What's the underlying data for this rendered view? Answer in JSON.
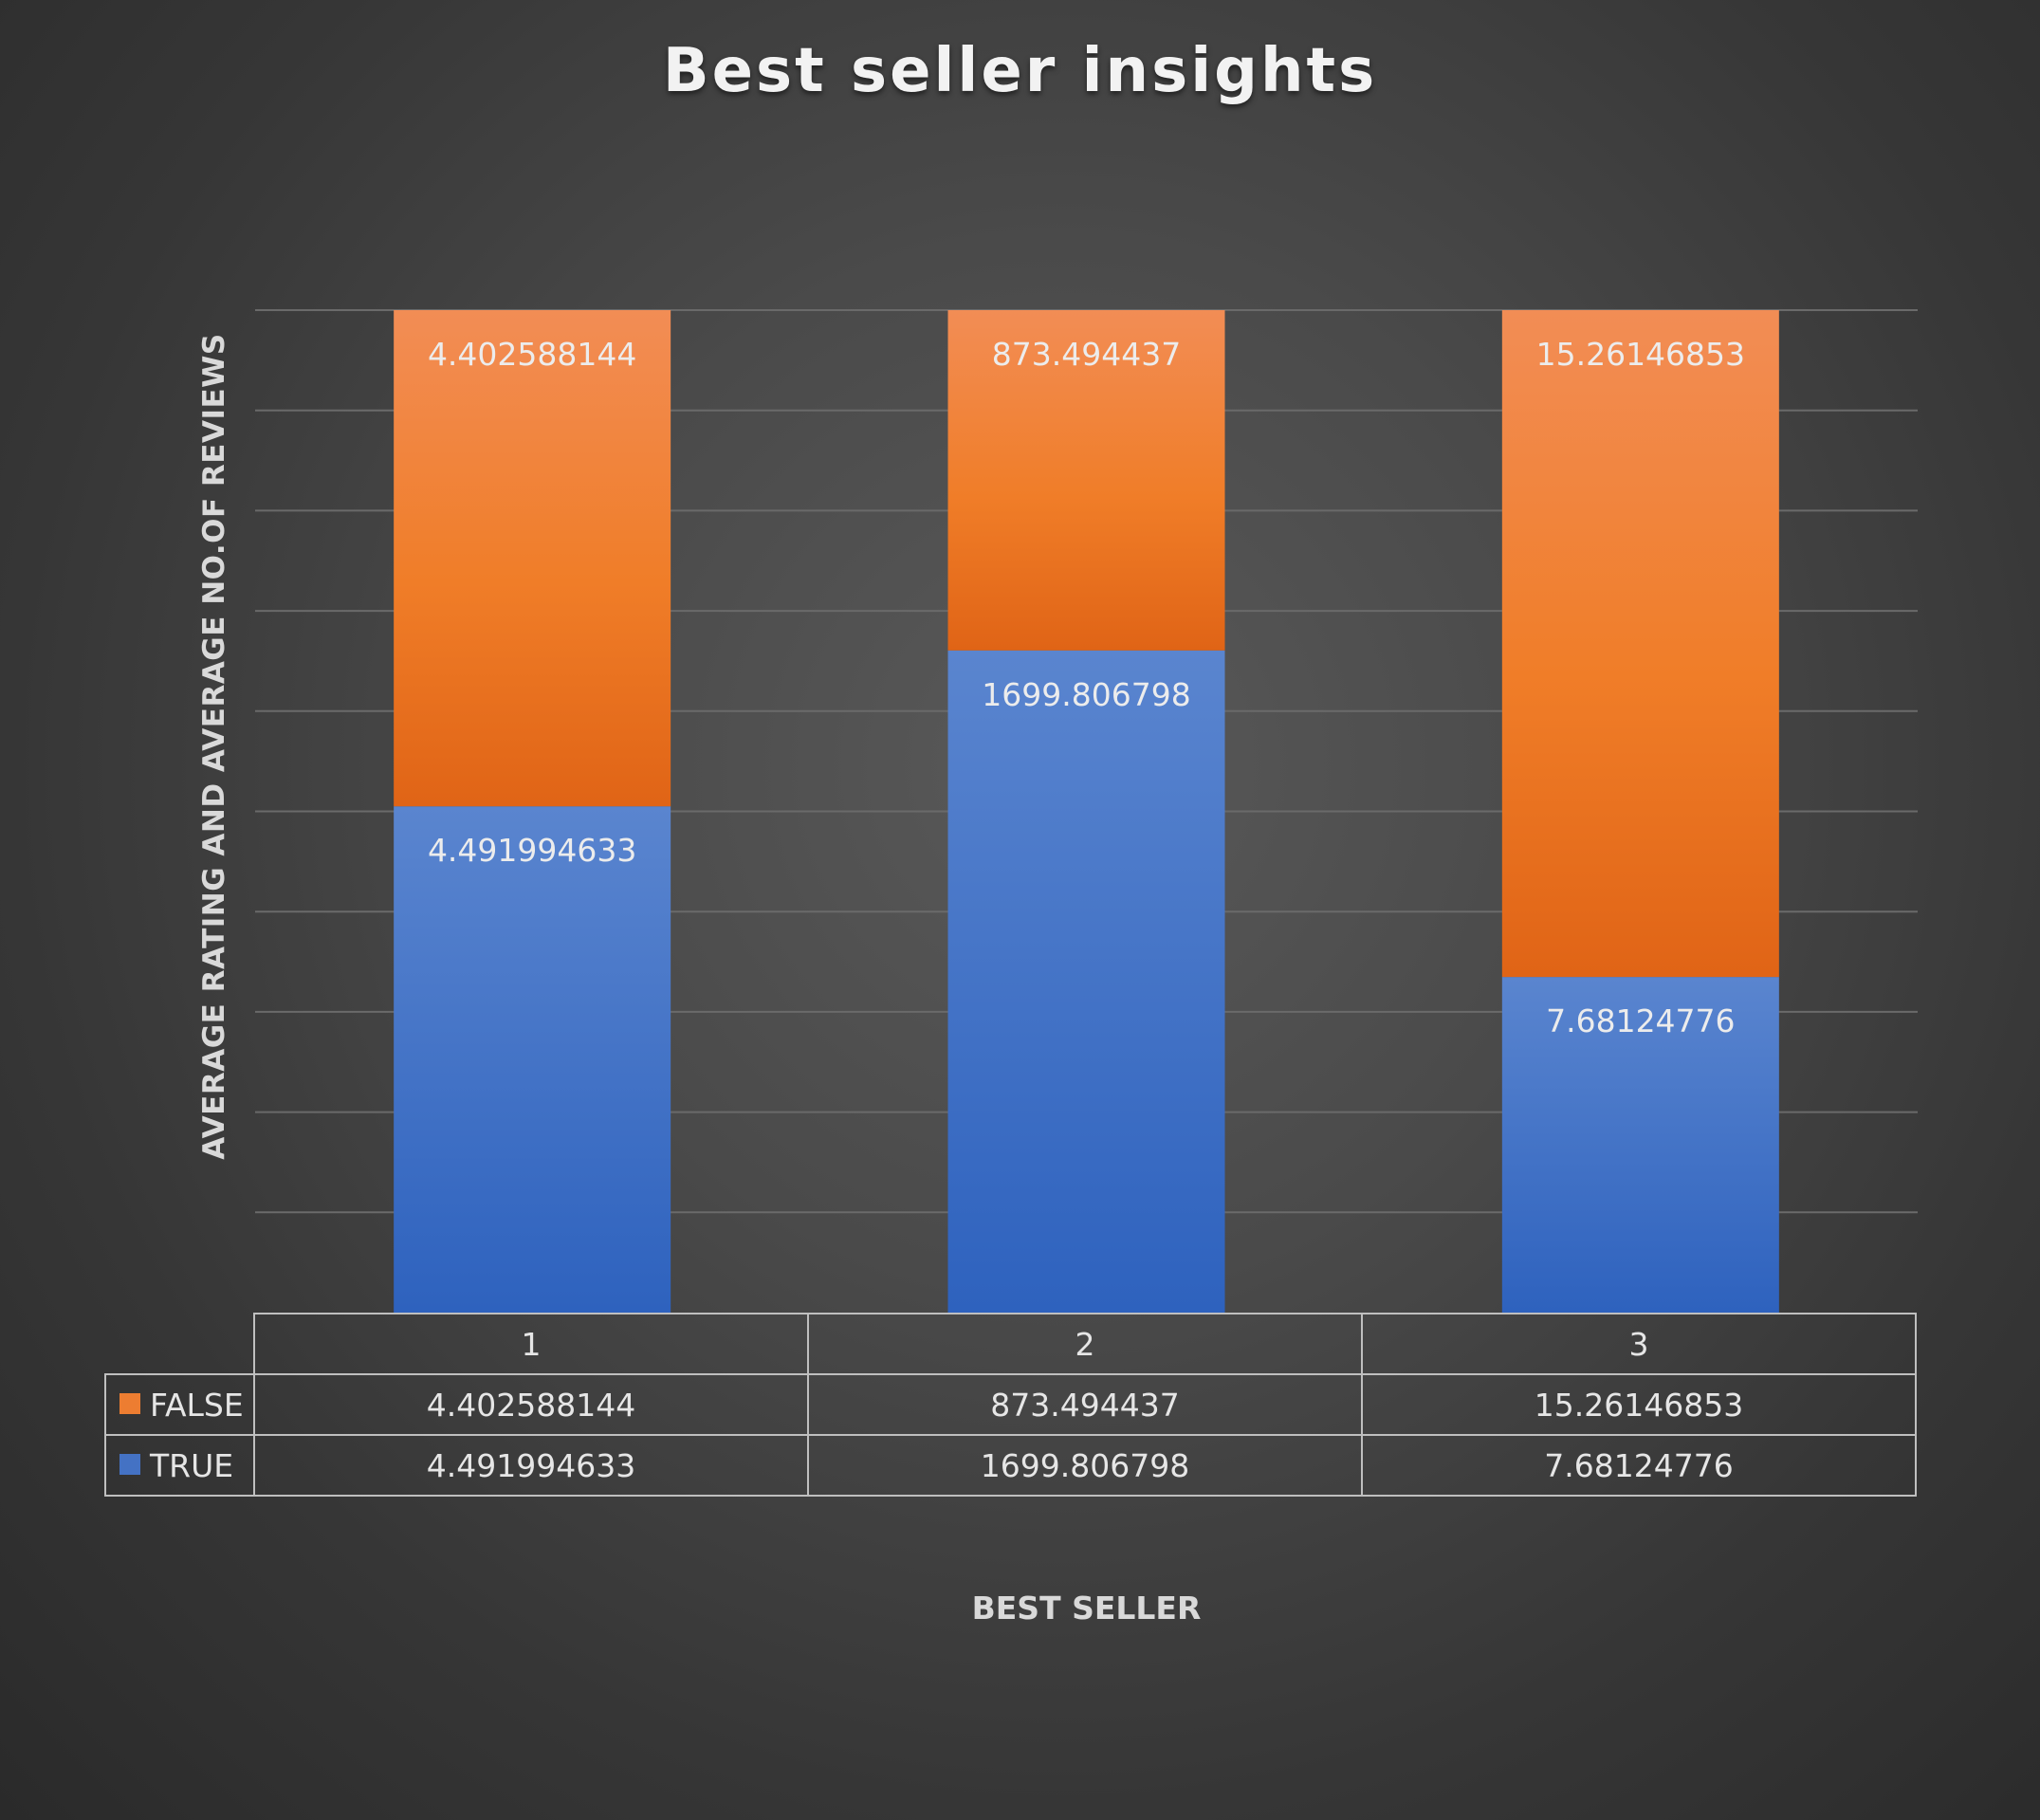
{
  "chart_data": {
    "type": "bar",
    "stacked": true,
    "title": "Best seller insights",
    "xlabel": "BEST SELLER",
    "ylabel": "AVERAGE RATING AND AVERAGE NO.OF REVIEWS",
    "normalized_100_percent": true,
    "categories": [
      "1",
      "2",
      "3"
    ],
    "series": [
      {
        "name": "TRUE",
        "color": "#4472c4",
        "values": [
          4.491994633,
          1699.806798,
          7.68124776
        ],
        "labels": [
          "4.491994633",
          "1699.806798",
          "7.68124776"
        ]
      },
      {
        "name": "FALSE",
        "color": "#ed7d31",
        "values": [
          4.402588144,
          873.494437,
          15.26146853
        ],
        "labels": [
          "4.402588144",
          "873.494437",
          "15.26146853"
        ]
      }
    ],
    "grid": true,
    "legend_position": "data table (left)",
    "data_table": {
      "header": [
        "1",
        "2",
        "3"
      ],
      "rows": [
        {
          "series": "FALSE",
          "cells": [
            "4.402588144",
            "873.494437",
            "15.26146853"
          ]
        },
        {
          "series": "TRUE",
          "cells": [
            "4.491994633",
            "1699.806798",
            "7.68124776"
          ]
        }
      ]
    }
  }
}
